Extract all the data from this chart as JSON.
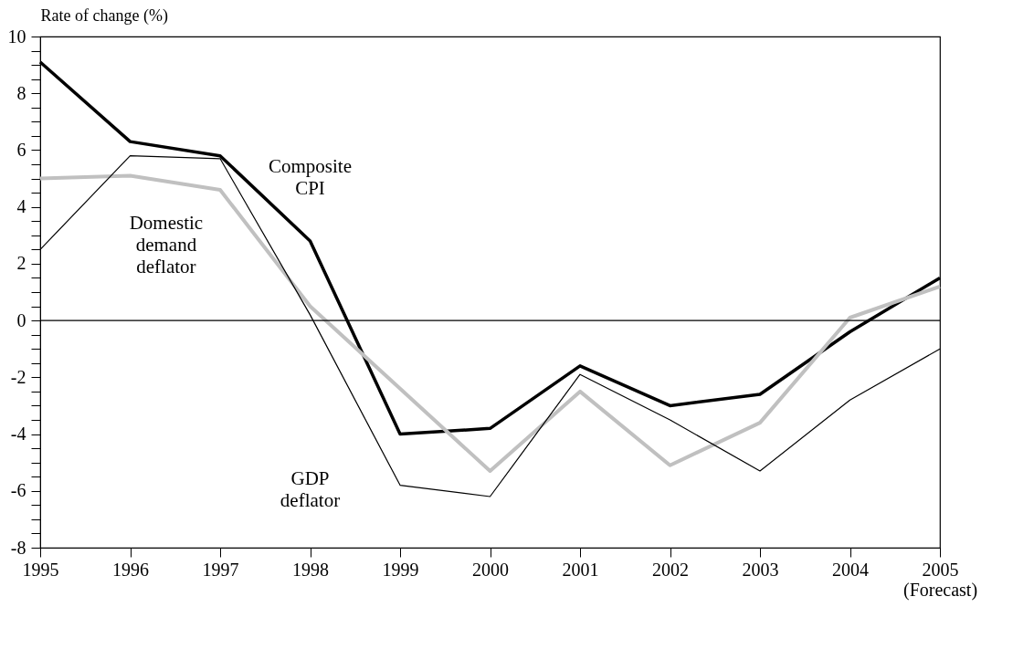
{
  "chart_data": {
    "type": "line",
    "ylabel": "Rate of change (%)",
    "x": [
      1995,
      1996,
      1997,
      1998,
      1999,
      2000,
      2001,
      2002,
      2003,
      2004,
      2005
    ],
    "xlim": [
      1995,
      2005
    ],
    "xticks": [
      1995,
      1996,
      1997,
      1998,
      1999,
      2000,
      2001,
      2002,
      2003,
      2004,
      {
        "value": 2005,
        "label": "2005 (Forecast)"
      }
    ],
    "ylim": [
      -8,
      10
    ],
    "yticks": [
      -8,
      {
        "value": -7.5,
        "label": null
      },
      {
        "value": -7,
        "label": null
      },
      {
        "value": -6.5,
        "label": null
      },
      -6,
      {
        "value": -5.5,
        "label": null
      },
      {
        "value": -5,
        "label": null
      },
      {
        "value": -4.5,
        "label": null
      },
      -4,
      {
        "value": -3.5,
        "label": null
      },
      {
        "value": -3,
        "label": null
      },
      {
        "value": -2.5,
        "label": null
      },
      -2,
      {
        "value": -1.5,
        "label": null
      },
      {
        "value": -1,
        "label": null
      },
      {
        "value": -0.5,
        "label": null
      },
      0,
      {
        "value": 0.5,
        "label": null
      },
      {
        "value": 1,
        "label": null
      },
      {
        "value": 1.5,
        "label": null
      },
      2,
      {
        "value": 2.5,
        "label": null
      },
      {
        "value": 3,
        "label": null
      },
      {
        "value": 3.5,
        "label": null
      },
      4,
      {
        "value": 4.5,
        "label": null
      },
      {
        "value": 5,
        "label": null
      },
      {
        "value": 5.5,
        "label": null
      },
      6,
      {
        "value": 6.5,
        "label": null
      },
      {
        "value": 7,
        "label": null
      },
      {
        "value": 7.5,
        "label": null
      },
      8,
      {
        "value": 8.5,
        "label": null
      },
      {
        "value": 9,
        "label": null
      },
      {
        "value": 9.5,
        "label": null
      },
      10
    ],
    "series": [
      {
        "name": "Composite CPI",
        "color": "#000000",
        "values": [
          9.1,
          6.3,
          5.8,
          2.8,
          -4.0,
          -3.8,
          -1.6,
          -3.0,
          -2.6,
          -0.4,
          1.5
        ]
      },
      {
        "name": "Domestic demand deflator",
        "color": "#c0c0c0",
        "values": [
          5.0,
          5.1,
          4.6,
          0.5,
          -2.4,
          -5.3,
          -2.5,
          -5.1,
          -3.6,
          0.1,
          1.2
        ]
      },
      {
        "name": "GDP deflator",
        "color": "#000000",
        "values": [
          2.5,
          5.8,
          5.7,
          0.2,
          -5.8,
          -6.2,
          -1.9,
          -3.5,
          -5.3,
          -2.8,
          -1.0
        ]
      }
    ],
    "ref_lines": [
      {
        "axis": "y",
        "value": 0,
        "color": "#000000"
      }
    ],
    "grid": false,
    "legend": false,
    "marker": "none",
    "line_style": "solid"
  }
}
